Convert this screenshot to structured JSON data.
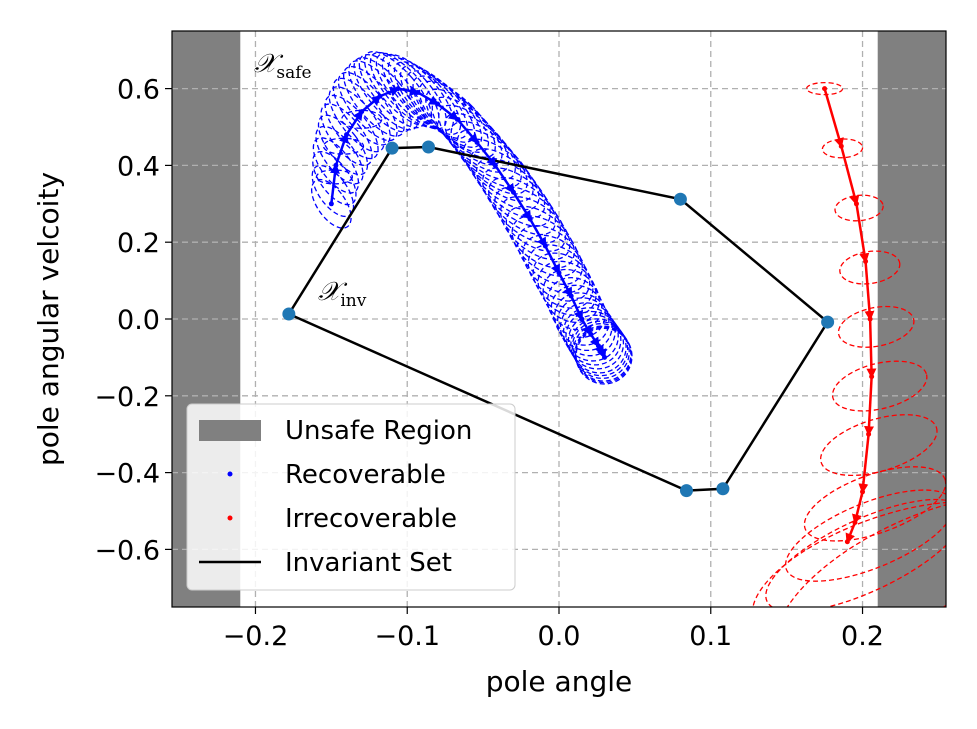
{
  "chart_data": {
    "type": "scatter",
    "xlabel": "pole angle",
    "ylabel": "pole angular velcoity",
    "xlim": [
      -0.255,
      0.255
    ],
    "ylim": [
      -0.75,
      0.75
    ],
    "xticks": [
      -0.2,
      -0.1,
      0.0,
      0.1,
      0.2
    ],
    "xtick_labels": [
      "−0.2",
      "−0.1",
      "0.0",
      "0.1",
      "0.2"
    ],
    "yticks": [
      0.6,
      0.4,
      0.2,
      0.0,
      -0.2,
      -0.4,
      -0.6
    ],
    "ytick_labels": [
      "0.6",
      "0.4",
      "0.2",
      "0.0",
      "−0.2",
      "−0.4",
      "−0.6"
    ],
    "grid": true,
    "unsafe_regions": [
      [
        -0.255,
        -0.21
      ],
      [
        0.21,
        0.255
      ]
    ],
    "annotations": [
      {
        "main": "𝒳",
        "sub": "safe",
        "x": -0.2,
        "y": 0.655
      },
      {
        "main": "𝒳",
        "sub": "inv",
        "x": -0.155,
        "y": 0.06
      }
    ],
    "invariant_set": {
      "x": [
        -0.178,
        -0.11,
        -0.086,
        0.08,
        0.177,
        0.108,
        0.084,
        -0.178
      ],
      "y": [
        0.013,
        0.445,
        0.448,
        0.312,
        -0.008,
        -0.442,
        -0.447,
        0.013
      ]
    },
    "recoverable": {
      "x": [
        -0.15,
        -0.147,
        -0.14,
        -0.13,
        -0.118,
        -0.106,
        -0.093,
        -0.08,
        -0.067,
        -0.054,
        -0.042,
        -0.03,
        -0.019,
        -0.009,
        0.0,
        0.008,
        0.015,
        0.021,
        0.026,
        0.029,
        0.03
      ],
      "y": [
        0.3,
        0.4,
        0.48,
        0.54,
        0.58,
        0.6,
        0.59,
        0.56,
        0.52,
        0.46,
        0.4,
        0.33,
        0.26,
        0.19,
        0.12,
        0.06,
        0.0,
        -0.04,
        -0.07,
        -0.09,
        -0.1
      ]
    },
    "irrecoverable": {
      "x": [
        0.175,
        0.186,
        0.196,
        0.202,
        0.205,
        0.206,
        0.204,
        0.2,
        0.195,
        0.19
      ],
      "y": [
        0.6,
        0.45,
        0.3,
        0.15,
        0.0,
        -0.15,
        -0.3,
        -0.45,
        -0.53,
        -0.58
      ]
    },
    "legend": {
      "position": "lower-left",
      "entries": [
        {
          "label": "Unsafe Region",
          "style": "patch",
          "color": "#808080"
        },
        {
          "label": "Recoverable",
          "style": "dot",
          "color": "#0000ff"
        },
        {
          "label": "Irrecoverable",
          "style": "dot",
          "color": "#ff0000"
        },
        {
          "label": "Invariant Set",
          "style": "line",
          "color": "#000000"
        }
      ]
    },
    "colors": {
      "unsafe": "#808080",
      "recoverable": "#0000ff",
      "irrecoverable": "#ff0000",
      "invariant": "#000000",
      "vertex": "#1f77b4",
      "grid": "#b0b0b0"
    }
  }
}
